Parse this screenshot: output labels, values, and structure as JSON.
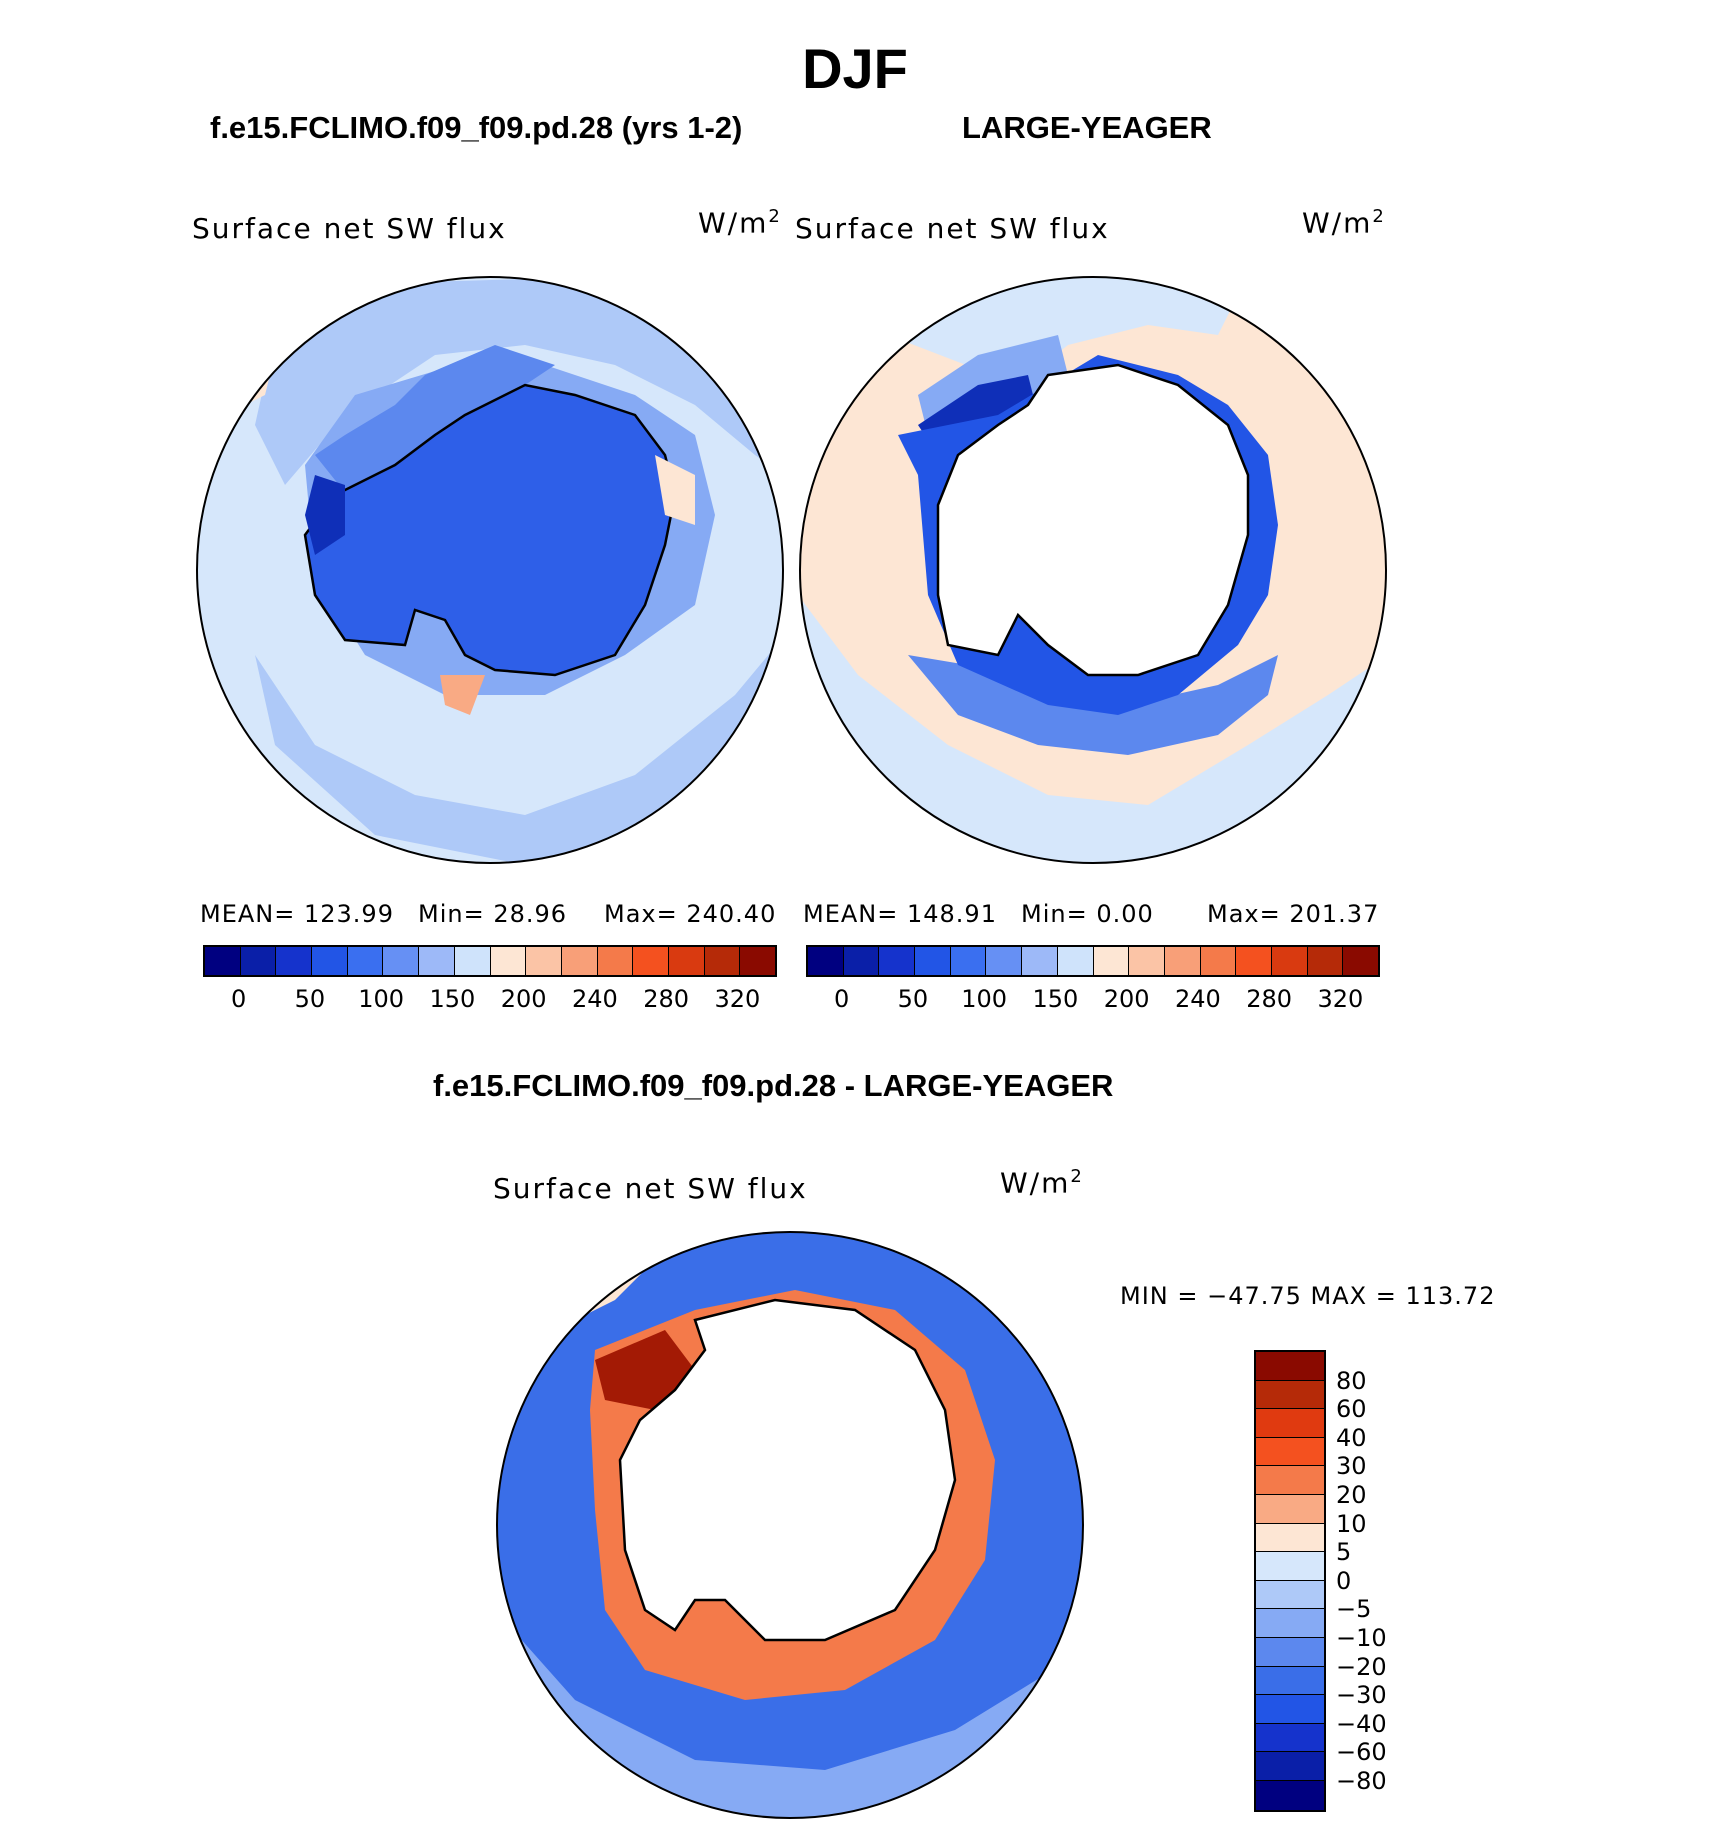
{
  "season": "DJF",
  "panels": {
    "model": {
      "title": "f.e15.FCLIMO.f09_f09.pd.28 (yrs 1-2)",
      "variable": "Surface net SW flux",
      "units": "W/m",
      "units_sup": "2",
      "stats": {
        "mean": "MEAN= 123.99",
        "min": "Min=   28.96",
        "max": "Max= 240.40"
      }
    },
    "obs": {
      "title": "LARGE-YEAGER",
      "variable": "Surface net SW flux",
      "units": "W/m",
      "units_sup": "2",
      "stats": {
        "mean": "MEAN= 148.91",
        "min": "Min=    0.00",
        "max": "Max= 201.37"
      }
    },
    "diff": {
      "title": "f.e15.FCLIMO.f09_f09.pd.28 - LARGE-YEAGER",
      "variable": "Surface net SW flux",
      "units": "W/m",
      "units_sup": "2",
      "minmax": "MIN = −47.75 MAX = 113.72"
    }
  },
  "colorbar_abs": {
    "colors": [
      "#000080",
      "#0a1fa8",
      "#1533cc",
      "#2255e6",
      "#3a6ff0",
      "#6690f4",
      "#9db9f8",
      "#cfe3fb",
      "#fde6d4",
      "#fbc4a6",
      "#f89f78",
      "#f47a4a",
      "#f4511f",
      "#d93a10",
      "#b52a08",
      "#8a0a00"
    ],
    "ticks": [
      "0",
      "50",
      "100",
      "150",
      "200",
      "240",
      "280",
      "320"
    ]
  },
  "colorbar_diff": {
    "colors": [
      "#8a0a00",
      "#b52a08",
      "#e03a10",
      "#f4511f",
      "#f47a4a",
      "#f9aa84",
      "#fde6d4",
      "#d6e7fb",
      "#aec9f8",
      "#86aaf4",
      "#5c88ee",
      "#3a6ee8",
      "#2255e6",
      "#1533cc",
      "#0a1fa8",
      "#000080"
    ],
    "ticks": [
      "80",
      "60",
      "40",
      "30",
      "20",
      "10",
      "5",
      "0",
      "−5",
      "−10",
      "−20",
      "−30",
      "−40",
      "−60",
      "−80"
    ]
  },
  "map_colors": {
    "land_blue": "#2e5fe8",
    "deep_blue": "#0f2fb8",
    "ocean_light": "#d6e7fb",
    "ocean_mid": "#aec9f8",
    "ocean_mid2": "#86aaf4",
    "peach": "#fde6d4",
    "red": "#f4511f",
    "dark_red": "#a31a05",
    "white": "#ffffff"
  }
}
